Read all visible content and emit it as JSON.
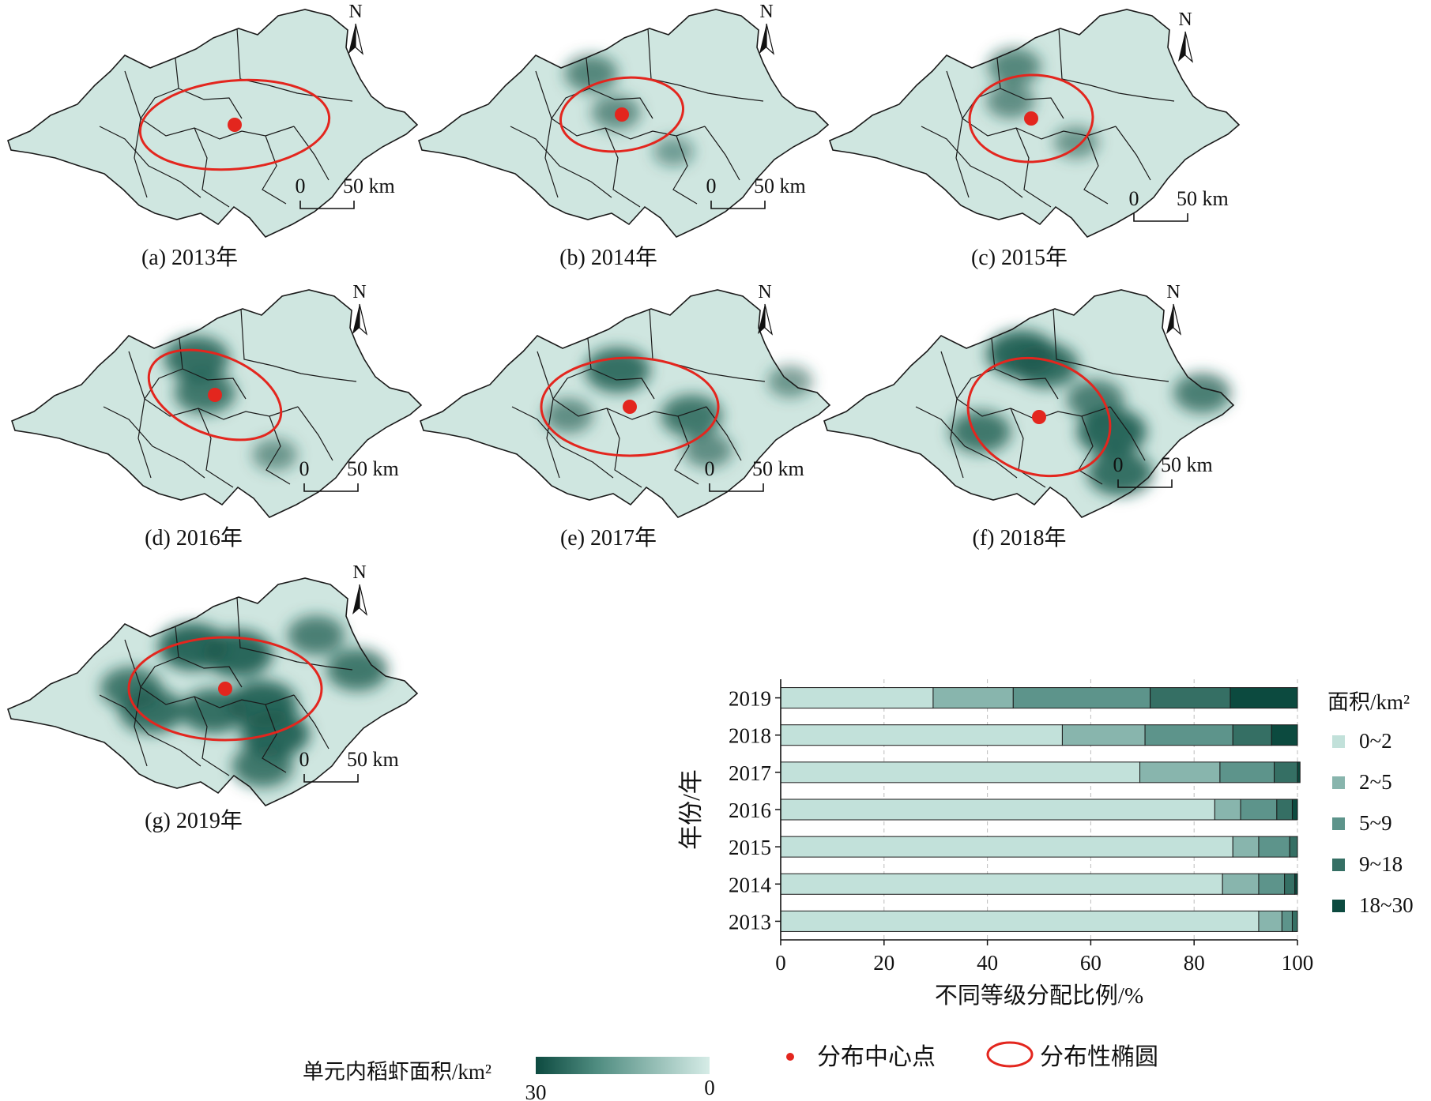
{
  "maps": [
    {
      "caption": "(a) 2013年",
      "year": "2013",
      "hotspots": []
    },
    {
      "caption": "(b) 2014年",
      "year": "2014",
      "hotspots": [
        [
          0.42,
          0.28,
          0.6
        ],
        [
          0.48,
          0.45,
          0.5
        ],
        [
          0.62,
          0.62,
          0.3
        ]
      ]
    },
    {
      "caption": "(c) 2015年",
      "year": "2015",
      "hotspots": [
        [
          0.45,
          0.25,
          0.6
        ],
        [
          0.44,
          0.4,
          0.5
        ],
        [
          0.6,
          0.58,
          0.4
        ]
      ]
    },
    {
      "caption": "(d) 2016年",
      "year": "2016",
      "hotspots": [
        [
          0.45,
          0.3,
          0.9
        ],
        [
          0.47,
          0.45,
          0.8
        ],
        [
          0.64,
          0.72,
          0.4
        ]
      ]
    },
    {
      "caption": "(e) 2017年",
      "year": "2017",
      "hotspots": [
        [
          0.48,
          0.35,
          0.9
        ],
        [
          0.66,
          0.55,
          0.8
        ],
        [
          0.36,
          0.55,
          0.5
        ],
        [
          0.7,
          0.7,
          0.5
        ],
        [
          0.9,
          0.4,
          0.4
        ]
      ]
    },
    {
      "caption": "(f) 2018年",
      "year": "2018",
      "hotspots": [
        [
          0.48,
          0.28,
          1
        ],
        [
          0.54,
          0.33,
          0.9
        ],
        [
          0.7,
          0.62,
          1
        ],
        [
          0.72,
          0.8,
          0.9
        ],
        [
          0.38,
          0.62,
          0.8
        ],
        [
          0.92,
          0.45,
          0.7
        ],
        [
          0.66,
          0.48,
          0.7
        ]
      ]
    },
    {
      "caption": "(g) 2019年",
      "year": "2019",
      "hotspots": [
        [
          0.45,
          0.3,
          1
        ],
        [
          0.56,
          0.33,
          1
        ],
        [
          0.62,
          0.55,
          1
        ],
        [
          0.65,
          0.68,
          1
        ],
        [
          0.35,
          0.58,
          0.9
        ],
        [
          0.85,
          0.4,
          0.8
        ],
        [
          0.62,
          0.82,
          0.8
        ],
        [
          0.75,
          0.25,
          0.7
        ],
        [
          0.3,
          0.48,
          0.8
        ],
        [
          0.5,
          0.58,
          0.9
        ]
      ]
    }
  ],
  "north_label": "N",
  "scale_bar": {
    "zero": "0",
    "label": "50 km"
  },
  "chart_data": {
    "type": "bar",
    "stacked": true,
    "orientation": "horizontal",
    "categories": [
      "2019",
      "2018",
      "2017",
      "2016",
      "2015",
      "2014",
      "2013"
    ],
    "series": [
      {
        "name": "0~2",
        "color": "#c2e1da",
        "values": [
          29.5,
          54.5,
          69.5,
          84,
          87.5,
          85.5,
          92.5
        ]
      },
      {
        "name": "2~5",
        "color": "#88b5ad",
        "values": [
          15.5,
          16,
          15.5,
          5,
          5,
          7,
          4.5
        ]
      },
      {
        "name": "5~9",
        "color": "#5d948b",
        "values": [
          26.5,
          17,
          10.5,
          7,
          6,
          5,
          2
        ]
      },
      {
        "name": "9~18",
        "color": "#356f64",
        "values": [
          15.5,
          7.5,
          4.5,
          3,
          1.5,
          2,
          1
        ]
      },
      {
        "name": "18~30",
        "color": "#0c4a3f",
        "values": [
          13,
          5,
          0.5,
          1,
          0,
          0.5,
          0
        ]
      }
    ],
    "xlabel": "不同等级分配比例/%",
    "ylabel": "年份/年",
    "xlim": [
      0,
      100
    ],
    "xticks": [
      "0",
      "20",
      "40",
      "60",
      "80",
      "100"
    ],
    "legend_title": "面积/km²",
    "legend_position": "right"
  },
  "legend": {
    "gradient_label": "单元内稻虾面积/km²",
    "gradient_high": "30",
    "gradient_low": "0",
    "gradient_colors": [
      "#0d4a40",
      "#d6ece7"
    ],
    "center_point_label": "分布中心点",
    "ellipse_label": "分布性椭圆",
    "center_color": "#e3261e",
    "ellipse_color": "#e3261e"
  },
  "colors": {
    "land": "#cfe6e0",
    "border": "#1a1a1a",
    "hot": "#1b5a4e"
  }
}
